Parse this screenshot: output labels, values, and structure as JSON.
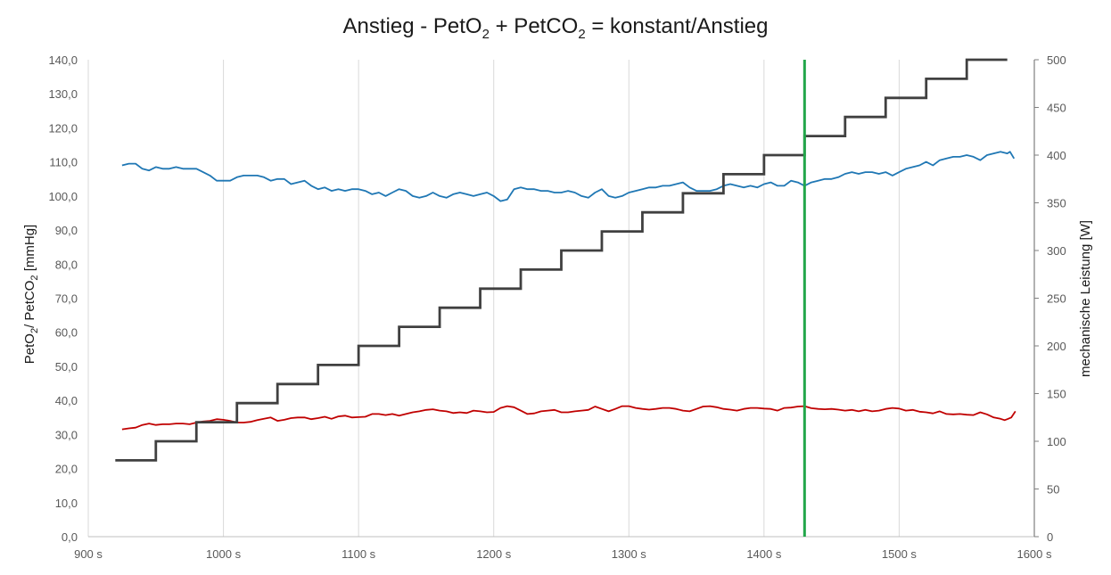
{
  "chart_data": {
    "type": "line",
    "title": {
      "part1": "Anstieg - PetO",
      "sub1": "2",
      "part2": " + PetCO",
      "sub2": "2",
      "part3": " = konstant/Anstieg"
    },
    "ylabel_left": {
      "part1": "PetO",
      "sub1": "2",
      "part2": "/ PetCO",
      "sub2": "2",
      "part3": " [mmHg]"
    },
    "ylabel_right": "mechanische Leistung [W]",
    "xlim": [
      900,
      1600
    ],
    "x_ticks": [
      "900 s",
      "1000 s",
      "1100 s",
      "1200 s",
      "1300 s",
      "1400 s",
      "1500 s",
      "1600 s"
    ],
    "ylim_left": [
      0,
      140
    ],
    "y_ticks_left": [
      "0,0",
      "10,0",
      "20,0",
      "30,0",
      "40,0",
      "50,0",
      "60,0",
      "70,0",
      "80,0",
      "90,0",
      "100,0",
      "110,0",
      "120,0",
      "130,0",
      "140,0"
    ],
    "ylim_right": [
      0,
      500
    ],
    "y_ticks_right": [
      "0",
      "50",
      "100",
      "150",
      "200",
      "250",
      "300",
      "350",
      "400",
      "450",
      "500"
    ],
    "grid": "vertical",
    "marker_line": {
      "x": 1430,
      "color": "#22a64a"
    },
    "series": [
      {
        "axis": "left",
        "color": "#1f77b4",
        "points": [
          [
            925,
            109
          ],
          [
            930,
            109.5
          ],
          [
            935,
            109.5
          ],
          [
            940,
            108
          ],
          [
            945,
            107.5
          ],
          [
            950,
            108.5
          ],
          [
            955,
            108
          ],
          [
            960,
            108
          ],
          [
            965,
            108.5
          ],
          [
            970,
            108
          ],
          [
            975,
            108
          ],
          [
            980,
            108
          ],
          [
            985,
            107
          ],
          [
            990,
            106
          ],
          [
            995,
            104.5
          ],
          [
            1000,
            104.5
          ],
          [
            1005,
            104.5
          ],
          [
            1010,
            105.5
          ],
          [
            1015,
            106
          ],
          [
            1020,
            106
          ],
          [
            1025,
            106
          ],
          [
            1030,
            105.5
          ],
          [
            1035,
            104.5
          ],
          [
            1040,
            105
          ],
          [
            1045,
            105
          ],
          [
            1050,
            103.5
          ],
          [
            1055,
            104
          ],
          [
            1060,
            104.5
          ],
          [
            1065,
            103
          ],
          [
            1070,
            102
          ],
          [
            1075,
            102.5
          ],
          [
            1080,
            101.5
          ],
          [
            1085,
            102
          ],
          [
            1090,
            101.5
          ],
          [
            1095,
            102
          ],
          [
            1100,
            102
          ],
          [
            1105,
            101.5
          ],
          [
            1110,
            100.5
          ],
          [
            1115,
            101
          ],
          [
            1120,
            100
          ],
          [
            1125,
            101
          ],
          [
            1130,
            102
          ],
          [
            1135,
            101.5
          ],
          [
            1140,
            100
          ],
          [
            1145,
            99.5
          ],
          [
            1150,
            100
          ],
          [
            1155,
            101
          ],
          [
            1160,
            100
          ],
          [
            1165,
            99.5
          ],
          [
            1170,
            100.5
          ],
          [
            1175,
            101
          ],
          [
            1180,
            100.5
          ],
          [
            1185,
            100
          ],
          [
            1190,
            100.5
          ],
          [
            1195,
            101
          ],
          [
            1200,
            100
          ],
          [
            1205,
            98.5
          ],
          [
            1210,
            99
          ],
          [
            1215,
            102
          ],
          [
            1220,
            102.5
          ],
          [
            1225,
            102
          ],
          [
            1230,
            102
          ],
          [
            1235,
            101.5
          ],
          [
            1240,
            101.5
          ],
          [
            1245,
            101
          ],
          [
            1250,
            101
          ],
          [
            1255,
            101.5
          ],
          [
            1260,
            101
          ],
          [
            1265,
            100
          ],
          [
            1270,
            99.5
          ],
          [
            1275,
            101
          ],
          [
            1280,
            102
          ],
          [
            1285,
            100
          ],
          [
            1290,
            99.5
          ],
          [
            1295,
            100
          ],
          [
            1300,
            101
          ],
          [
            1305,
            101.5
          ],
          [
            1310,
            102
          ],
          [
            1315,
            102.5
          ],
          [
            1320,
            102.5
          ],
          [
            1325,
            103
          ],
          [
            1330,
            103
          ],
          [
            1335,
            103.5
          ],
          [
            1340,
            104
          ],
          [
            1345,
            102.5
          ],
          [
            1350,
            101.5
          ],
          [
            1355,
            101.5
          ],
          [
            1360,
            101.5
          ],
          [
            1365,
            102
          ],
          [
            1370,
            103
          ],
          [
            1375,
            103.5
          ],
          [
            1380,
            103
          ],
          [
            1385,
            102.5
          ],
          [
            1390,
            103
          ],
          [
            1395,
            102.5
          ],
          [
            1400,
            103.5
          ],
          [
            1405,
            104
          ],
          [
            1410,
            103
          ],
          [
            1415,
            103
          ],
          [
            1420,
            104.5
          ],
          [
            1425,
            104
          ],
          [
            1430,
            103
          ],
          [
            1435,
            104
          ],
          [
            1440,
            104.5
          ],
          [
            1445,
            105
          ],
          [
            1450,
            105
          ],
          [
            1455,
            105.5
          ],
          [
            1460,
            106.5
          ],
          [
            1465,
            107
          ],
          [
            1470,
            106.5
          ],
          [
            1475,
            107
          ],
          [
            1480,
            107
          ],
          [
            1485,
            106.5
          ],
          [
            1490,
            107
          ],
          [
            1495,
            106
          ],
          [
            1500,
            107
          ],
          [
            1505,
            108
          ],
          [
            1510,
            108.5
          ],
          [
            1515,
            109
          ],
          [
            1520,
            110
          ],
          [
            1525,
            109
          ],
          [
            1530,
            110.5
          ],
          [
            1535,
            111
          ],
          [
            1540,
            111.5
          ],
          [
            1545,
            111.5
          ],
          [
            1550,
            112
          ],
          [
            1555,
            111.5
          ],
          [
            1560,
            110.5
          ],
          [
            1565,
            112
          ],
          [
            1570,
            112.5
          ],
          [
            1575,
            113
          ],
          [
            1580,
            112.5
          ],
          [
            1582,
            113
          ],
          [
            1585,
            111
          ]
        ]
      },
      {
        "axis": "left",
        "color": "#c00000",
        "points": [
          [
            925,
            31.5
          ],
          [
            930,
            31.8
          ],
          [
            935,
            32
          ],
          [
            940,
            32.8
          ],
          [
            945,
            33.2
          ],
          [
            950,
            32.8
          ],
          [
            955,
            33
          ],
          [
            960,
            33
          ],
          [
            965,
            33.2
          ],
          [
            970,
            33.2
          ],
          [
            975,
            33
          ],
          [
            980,
            33.5
          ],
          [
            985,
            33.8
          ],
          [
            990,
            34
          ],
          [
            995,
            34.5
          ],
          [
            1000,
            34.3
          ],
          [
            1005,
            34
          ],
          [
            1010,
            33.5
          ],
          [
            1015,
            33.5
          ],
          [
            1020,
            33.7
          ],
          [
            1025,
            34.2
          ],
          [
            1030,
            34.6
          ],
          [
            1035,
            35
          ],
          [
            1040,
            34
          ],
          [
            1045,
            34.3
          ],
          [
            1050,
            34.8
          ],
          [
            1055,
            35
          ],
          [
            1060,
            35
          ],
          [
            1065,
            34.5
          ],
          [
            1070,
            34.8
          ],
          [
            1075,
            35.2
          ],
          [
            1080,
            34.6
          ],
          [
            1085,
            35.3
          ],
          [
            1090,
            35.5
          ],
          [
            1095,
            35
          ],
          [
            1100,
            35.1
          ],
          [
            1105,
            35.2
          ],
          [
            1110,
            36
          ],
          [
            1115,
            36
          ],
          [
            1120,
            35.7
          ],
          [
            1125,
            36
          ],
          [
            1130,
            35.5
          ],
          [
            1135,
            36
          ],
          [
            1140,
            36.5
          ],
          [
            1145,
            36.8
          ],
          [
            1150,
            37.2
          ],
          [
            1155,
            37.4
          ],
          [
            1160,
            37
          ],
          [
            1165,
            36.8
          ],
          [
            1170,
            36.3
          ],
          [
            1175,
            36.5
          ],
          [
            1180,
            36.3
          ],
          [
            1185,
            37
          ],
          [
            1190,
            36.8
          ],
          [
            1195,
            36.5
          ],
          [
            1200,
            36.6
          ],
          [
            1205,
            37.8
          ],
          [
            1210,
            38.3
          ],
          [
            1215,
            38
          ],
          [
            1220,
            37
          ],
          [
            1225,
            36
          ],
          [
            1230,
            36.2
          ],
          [
            1235,
            36.8
          ],
          [
            1240,
            37
          ],
          [
            1245,
            37.2
          ],
          [
            1250,
            36.5
          ],
          [
            1255,
            36.5
          ],
          [
            1260,
            36.8
          ],
          [
            1265,
            37
          ],
          [
            1270,
            37.2
          ],
          [
            1275,
            38.2
          ],
          [
            1280,
            37.5
          ],
          [
            1285,
            36.8
          ],
          [
            1290,
            37.5
          ],
          [
            1295,
            38.3
          ],
          [
            1300,
            38.3
          ],
          [
            1305,
            37.8
          ],
          [
            1310,
            37.5
          ],
          [
            1315,
            37.3
          ],
          [
            1320,
            37.5
          ],
          [
            1325,
            37.8
          ],
          [
            1330,
            37.8
          ],
          [
            1335,
            37.5
          ],
          [
            1340,
            37
          ],
          [
            1345,
            36.8
          ],
          [
            1350,
            37.5
          ],
          [
            1355,
            38.2
          ],
          [
            1360,
            38.3
          ],
          [
            1365,
            38
          ],
          [
            1370,
            37.5
          ],
          [
            1375,
            37.3
          ],
          [
            1380,
            37
          ],
          [
            1385,
            37.5
          ],
          [
            1390,
            37.8
          ],
          [
            1395,
            37.8
          ],
          [
            1400,
            37.6
          ],
          [
            1405,
            37.5
          ],
          [
            1410,
            37
          ],
          [
            1415,
            37.8
          ],
          [
            1420,
            37.9
          ],
          [
            1425,
            38.2
          ],
          [
            1430,
            38.3
          ],
          [
            1435,
            37.7
          ],
          [
            1440,
            37.5
          ],
          [
            1445,
            37.4
          ],
          [
            1450,
            37.5
          ],
          [
            1455,
            37.3
          ],
          [
            1460,
            37
          ],
          [
            1465,
            37.2
          ],
          [
            1470,
            36.8
          ],
          [
            1475,
            37.2
          ],
          [
            1480,
            36.8
          ],
          [
            1485,
            37
          ],
          [
            1490,
            37.5
          ],
          [
            1495,
            37.8
          ],
          [
            1500,
            37.6
          ],
          [
            1505,
            37
          ],
          [
            1510,
            37.2
          ],
          [
            1515,
            36.7
          ],
          [
            1520,
            36.5
          ],
          [
            1525,
            36.2
          ],
          [
            1530,
            36.8
          ],
          [
            1535,
            36
          ],
          [
            1540,
            35.9
          ],
          [
            1545,
            36
          ],
          [
            1550,
            35.8
          ],
          [
            1555,
            35.7
          ],
          [
            1560,
            36.5
          ],
          [
            1565,
            35.9
          ],
          [
            1570,
            35
          ],
          [
            1575,
            34.6
          ],
          [
            1578,
            34.2
          ],
          [
            1580,
            34.5
          ],
          [
            1583,
            35
          ],
          [
            1586,
            36.8
          ]
        ]
      },
      {
        "axis": "right",
        "color": "#404040",
        "steps": [
          [
            920,
            80
          ],
          [
            950,
            100
          ],
          [
            980,
            120
          ],
          [
            1010,
            140
          ],
          [
            1040,
            160
          ],
          [
            1070,
            180
          ],
          [
            1100,
            200
          ],
          [
            1130,
            220
          ],
          [
            1160,
            240
          ],
          [
            1190,
            260
          ],
          [
            1220,
            280
          ],
          [
            1250,
            300
          ],
          [
            1280,
            320
          ],
          [
            1310,
            340
          ],
          [
            1340,
            360
          ],
          [
            1370,
            380
          ],
          [
            1400,
            400
          ],
          [
            1430,
            420
          ],
          [
            1460,
            440
          ],
          [
            1490,
            460
          ],
          [
            1520,
            480
          ],
          [
            1550,
            500
          ]
        ],
        "x_end": 1580
      }
    ]
  }
}
